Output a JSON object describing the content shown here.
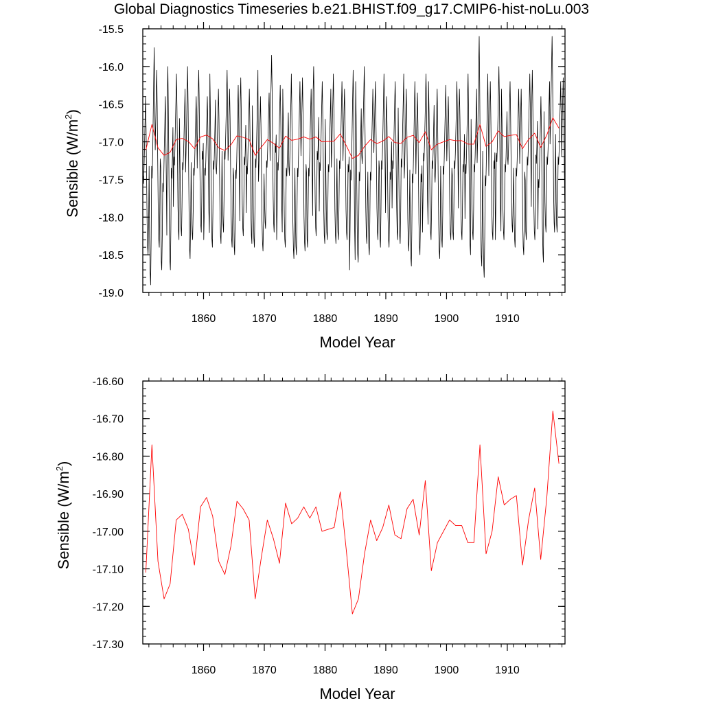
{
  "title": "Global Diagnostics Timeseries b.e21.BHIST.f09_g17.CMIP6-hist-noLu.003",
  "colors": {
    "monthly": "#000000",
    "annual": "#ff0000",
    "frame": "#000000"
  },
  "chart_data": [
    {
      "type": "line",
      "xlabel": "Model Year",
      "ylabel": "Sensible (W/m²)",
      "ylabel_base": "Sensible (W/m",
      "ylabel_sup": "2",
      "ylabel_close": ")",
      "xlim": [
        1850,
        1919.5
      ],
      "ylim": [
        -19.0,
        -15.5
      ],
      "xticks": [
        1860,
        1870,
        1880,
        1890,
        1900,
        1910
      ],
      "xtick_labels": [
        "1860",
        "1870",
        "1880",
        "1890",
        "1900",
        "1910"
      ],
      "yticks": [
        -19.0,
        -18.5,
        -18.0,
        -17.5,
        -17.0,
        -16.5,
        -16.0,
        -15.5
      ],
      "ytick_labels": [
        "-19.0",
        "-18.5",
        "-18.0",
        "-17.5",
        "-17.0",
        "-16.5",
        "-16.0",
        "-15.5"
      ],
      "series": [
        {
          "kind": "monthly",
          "x_start": 1850.04,
          "x_step": 0.08333,
          "max_values": [
            -16.4,
            -15.75,
            -16.05,
            -16.4,
            -16.0,
            -16.1,
            -16.3,
            -16.0,
            -16.4,
            -16.05,
            -16.4,
            -16.1,
            -16.3,
            -16.05,
            -16.3,
            -16.25,
            -16.15,
            -16.3,
            -16.05,
            -16.4,
            -16.35,
            -15.85,
            -16.25,
            -16.3,
            -16.1,
            -16.2,
            -16.15,
            -16.3,
            -16.0,
            -16.2,
            -16.3,
            -16.1,
            -16.2,
            -16.3,
            -16.05,
            -16.2,
            -16.0,
            -16.3,
            -16.2,
            -16.1,
            -16.4,
            -16.2,
            -16.1,
            -16.3,
            -16.2,
            -16.35,
            -16.1,
            -16.2,
            -16.3,
            -16.25,
            -16.4,
            -16.2,
            -16.3,
            -16.1,
            -16.3,
            -15.6,
            -16.1,
            -16.2,
            -16.0,
            -16.3,
            -16.2,
            -16.3,
            -16.3,
            -16.1,
            -16.05,
            -16.4,
            -16.2,
            -15.6,
            -16.2,
            -16.15
          ],
          "min_values": [
            -18.5,
            -18.9,
            -18.4,
            -18.7,
            -18.7,
            -18.3,
            -18.25,
            -18.55,
            -18.3,
            -18.2,
            -18.3,
            -18.4,
            -18.35,
            -18.2,
            -18.4,
            -18.5,
            -18.25,
            -18.35,
            -18.4,
            -18.45,
            -18.15,
            -18.2,
            -18.3,
            -18.4,
            -18.55,
            -18.5,
            -18.45,
            -18.4,
            -18.25,
            -18.35,
            -18.3,
            -18.35,
            -18.3,
            -18.3,
            -18.7,
            -18.6,
            -18.35,
            -18.5,
            -18.3,
            -18.4,
            -18.4,
            -18.3,
            -18.35,
            -18.45,
            -18.65,
            -18.5,
            -18.2,
            -18.3,
            -18.55,
            -18.4,
            -18.3,
            -18.3,
            -18.3,
            -18.5,
            -18.3,
            -18.65,
            -18.8,
            -18.3,
            -18.3,
            -18.3,
            -18.2,
            -18.4,
            -18.5,
            -18.3,
            -18.3,
            -18.6,
            -18.2,
            -18.2,
            -18.2,
            -18.2
          ]
        },
        {
          "kind": "annual",
          "x_start": 1850.5,
          "x_step": 1,
          "values": [
            -17.11,
            -16.77,
            -17.08,
            -17.18,
            -17.14,
            -16.97,
            -16.955,
            -16.995,
            -17.09,
            -16.935,
            -16.91,
            -16.96,
            -17.08,
            -17.115,
            -17.04,
            -16.92,
            -16.94,
            -16.97,
            -17.18,
            -17.07,
            -16.97,
            -17.02,
            -17.085,
            -16.925,
            -16.98,
            -16.965,
            -16.935,
            -16.965,
            -16.935,
            -17.0,
            -16.995,
            -16.99,
            -16.895,
            -17.05,
            -17.22,
            -17.18,
            -17.06,
            -16.97,
            -17.025,
            -16.99,
            -16.93,
            -17.01,
            -17.02,
            -16.94,
            -16.915,
            -17.01,
            -16.865,
            -17.105,
            -17.03,
            -17.0,
            -16.97,
            -16.985,
            -16.985,
            -17.03,
            -17.03,
            -16.77,
            -17.06,
            -17.0,
            -16.855,
            -16.93,
            -16.915,
            -16.905,
            -17.09,
            -16.97,
            -16.885,
            -17.075,
            -16.91,
            -16.68,
            -16.82
          ]
        }
      ]
    },
    {
      "type": "line",
      "xlabel": "Model Year",
      "ylabel": "Sensible (W/m²)",
      "ylabel_base": "Sensible (W/m",
      "ylabel_sup": "2",
      "ylabel_close": ")",
      "xlim": [
        1850,
        1919.5
      ],
      "ylim": [
        -17.3,
        -16.6
      ],
      "xticks": [
        1860,
        1870,
        1880,
        1890,
        1900,
        1910
      ],
      "xtick_labels": [
        "1860",
        "1870",
        "1880",
        "1890",
        "1900",
        "1910"
      ],
      "yticks": [
        -17.3,
        -17.2,
        -17.1,
        -17.0,
        -16.9,
        -16.8,
        -16.7,
        -16.6
      ],
      "ytick_labels": [
        "-17.30",
        "-17.20",
        "-17.10",
        "-17.00",
        "-16.90",
        "-16.80",
        "-16.70",
        "-16.60"
      ],
      "series": [
        {
          "kind": "annual",
          "x_start": 1850.5,
          "x_step": 1,
          "values": [
            -17.11,
            -16.77,
            -17.08,
            -17.18,
            -17.14,
            -16.97,
            -16.955,
            -16.995,
            -17.09,
            -16.935,
            -16.91,
            -16.96,
            -17.08,
            -17.115,
            -17.04,
            -16.92,
            -16.94,
            -16.97,
            -17.18,
            -17.07,
            -16.97,
            -17.02,
            -17.085,
            -16.925,
            -16.98,
            -16.965,
            -16.935,
            -16.965,
            -16.935,
            -17.0,
            -16.995,
            -16.99,
            -16.895,
            -17.05,
            -17.22,
            -17.18,
            -17.06,
            -16.97,
            -17.025,
            -16.99,
            -16.93,
            -17.01,
            -17.02,
            -16.94,
            -16.915,
            -17.01,
            -16.865,
            -17.105,
            -17.03,
            -17.0,
            -16.97,
            -16.985,
            -16.985,
            -17.03,
            -17.03,
            -16.77,
            -17.06,
            -17.0,
            -16.855,
            -16.93,
            -16.915,
            -16.905,
            -17.09,
            -16.97,
            -16.885,
            -17.075,
            -16.91,
            -16.68,
            -16.82
          ]
        }
      ]
    }
  ]
}
